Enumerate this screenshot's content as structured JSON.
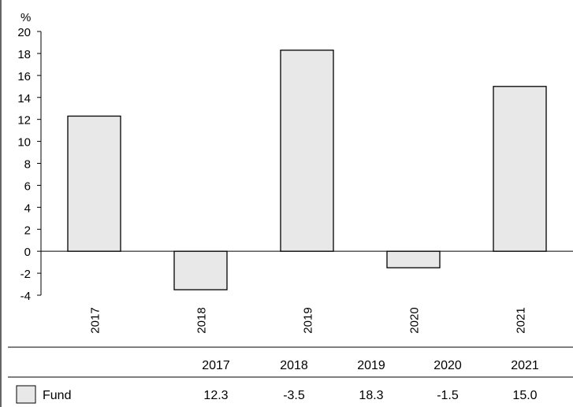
{
  "chart_data": {
    "type": "bar",
    "title": "",
    "xlabel": "",
    "ylabel": "%",
    "ylim": [
      -4,
      20
    ],
    "ytick_step": 2,
    "grid": false,
    "categories": [
      "2017",
      "2018",
      "2019",
      "2020",
      "2021"
    ],
    "series": [
      {
        "name": "Fund",
        "values": [
          12.3,
          -3.5,
          18.3,
          -1.5,
          15.0
        ],
        "color": "#e8e8e8"
      }
    ],
    "table": {
      "headers": [
        "2017",
        "2018",
        "2019",
        "2020",
        "2021"
      ],
      "rows": [
        {
          "label": "Fund",
          "cells": [
            "12.3",
            "-3.5",
            "18.3",
            "-1.5",
            "15.0"
          ]
        }
      ]
    },
    "legend_placement": "table-bottom"
  }
}
